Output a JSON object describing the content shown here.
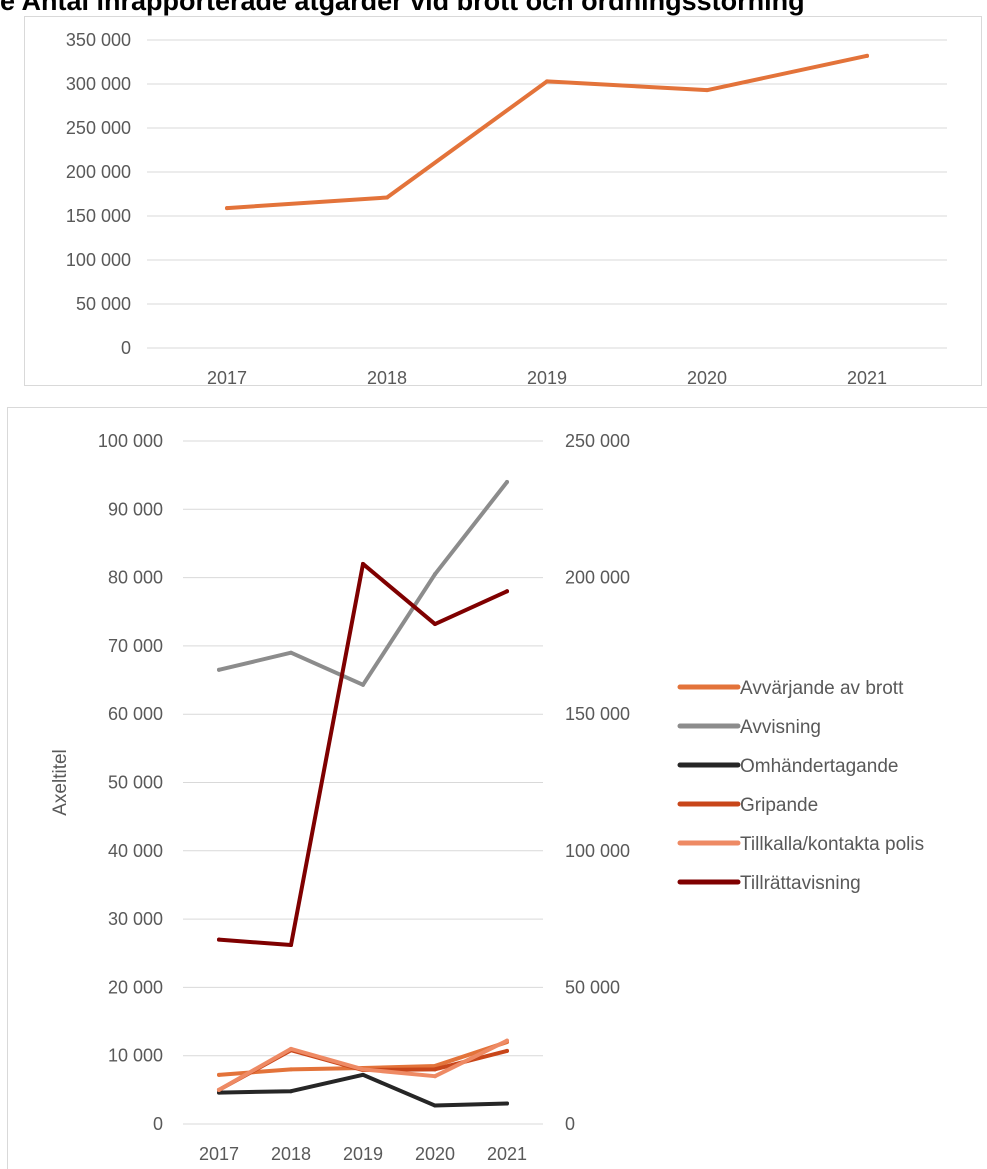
{
  "heading": "e  Antal inrapporterade åtgärder vid brott och ordningsstörning",
  "chart_data": [
    {
      "type": "line",
      "categories": [
        "2017",
        "2018",
        "2019",
        "2020",
        "2021"
      ],
      "series": [
        {
          "values": [
            159000,
            171000,
            303000,
            293000,
            332000
          ],
          "color": "#e3733a"
        }
      ],
      "ylim": [
        0,
        350000
      ],
      "yticks": [
        "0",
        "50 000",
        "100 000",
        "150 000",
        "200 000",
        "250 000",
        "300 000",
        "350 000"
      ],
      "grid": true,
      "legend": "none"
    },
    {
      "type": "line",
      "categories": [
        "2017",
        "2018",
        "2019",
        "2020",
        "2021"
      ],
      "ylabel": "Axeltitel",
      "ylim": [
        0,
        100000
      ],
      "y2lim": [
        0,
        250000
      ],
      "yticks": [
        "0",
        "10 000",
        "20 000",
        "30 000",
        "40 000",
        "50 000",
        "60 000",
        "70 000",
        "80 000",
        "90 000",
        "100 000"
      ],
      "y2ticks": [
        "0",
        "50 000",
        "100 000",
        "150 000",
        "200 000",
        "250 000"
      ],
      "grid": true,
      "legend": "right",
      "series": [
        {
          "name": "Avvärjande av brott",
          "axis": "left",
          "values": [
            7200,
            8000,
            8200,
            8500,
            12000
          ],
          "color": "#e3733a"
        },
        {
          "name": "Avvisning",
          "axis": "left",
          "values": [
            66500,
            69000,
            64300,
            80500,
            94000
          ],
          "color": "#8c8c8c"
        },
        {
          "name": "Omhändertagande",
          "axis": "left",
          "values": [
            4600,
            4800,
            7200,
            2700,
            3000
          ],
          "color": "#262626"
        },
        {
          "name": "Gripande",
          "axis": "left",
          "values": [
            5000,
            10800,
            7900,
            8000,
            10700
          ],
          "color": "#c8461a"
        },
        {
          "name": "Tillkalla/kontakta polis",
          "axis": "left",
          "values": [
            5000,
            11000,
            8000,
            7000,
            12200
          ],
          "color": "#ee8a64"
        },
        {
          "name": "Tillrättavisning",
          "axis": "right",
          "values": [
            67500,
            65500,
            205000,
            183000,
            195000
          ],
          "color": "#7f0000"
        }
      ]
    }
  ]
}
